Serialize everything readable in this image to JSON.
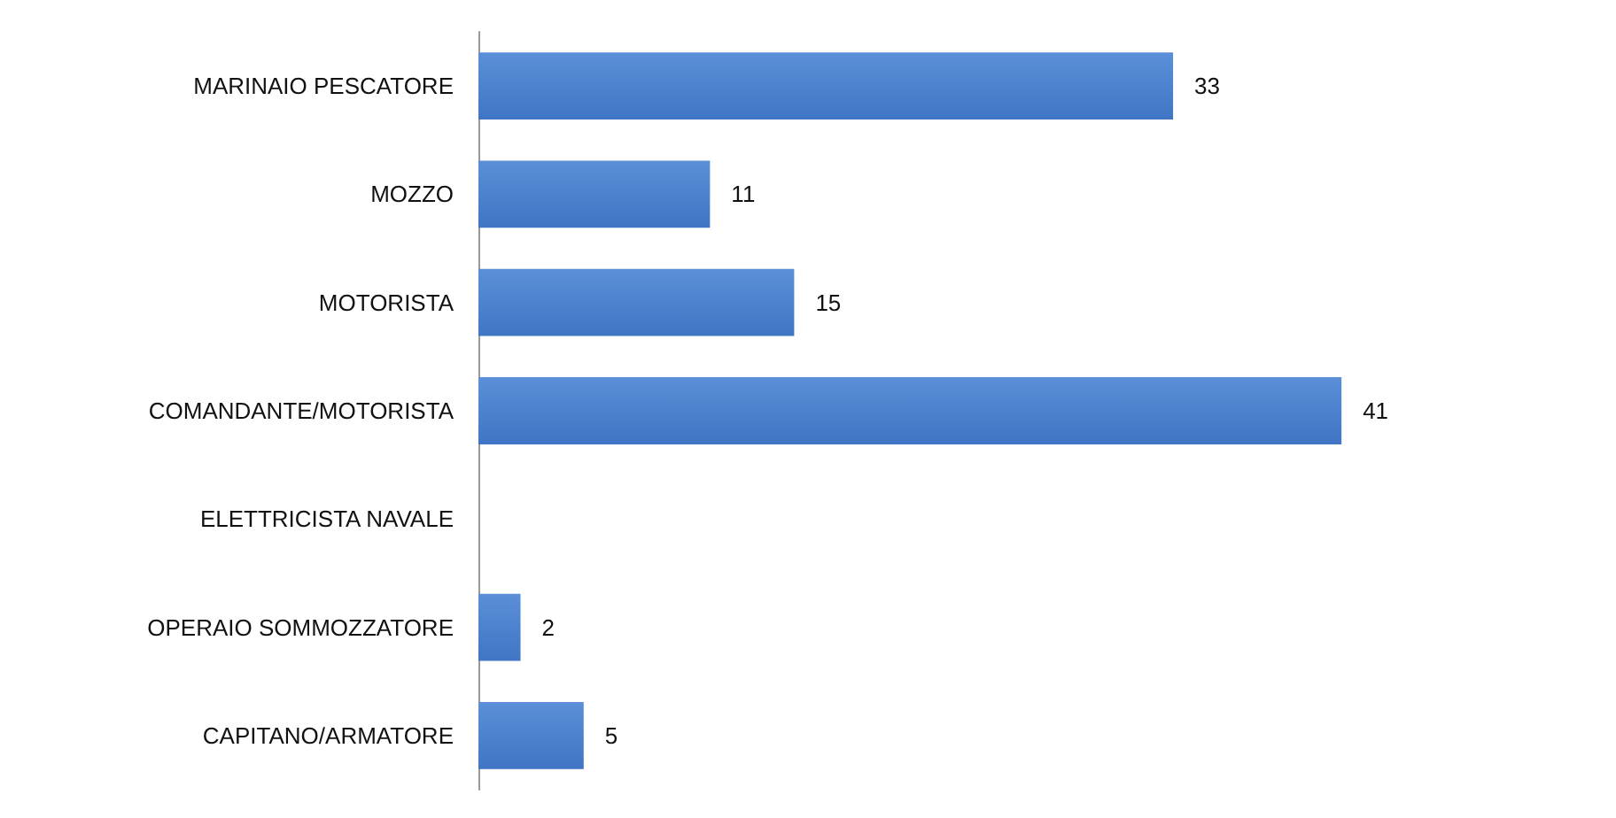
{
  "chart_data": {
    "type": "bar",
    "orientation": "horizontal",
    "categories": [
      "MARINAIO PESCATORE",
      "MOZZO",
      "MOTORISTA",
      "COMANDANTE/MOTORISTA",
      "ELETTRICISTA NAVALE",
      "OPERAIO SOMMOZZATORE",
      "CAPITANO/ARMATORE"
    ],
    "values": [
      33,
      11,
      15,
      41,
      null,
      2,
      5
    ],
    "color": "#5b8fd8",
    "data_labels": true,
    "tick_labels": "y"
  }
}
